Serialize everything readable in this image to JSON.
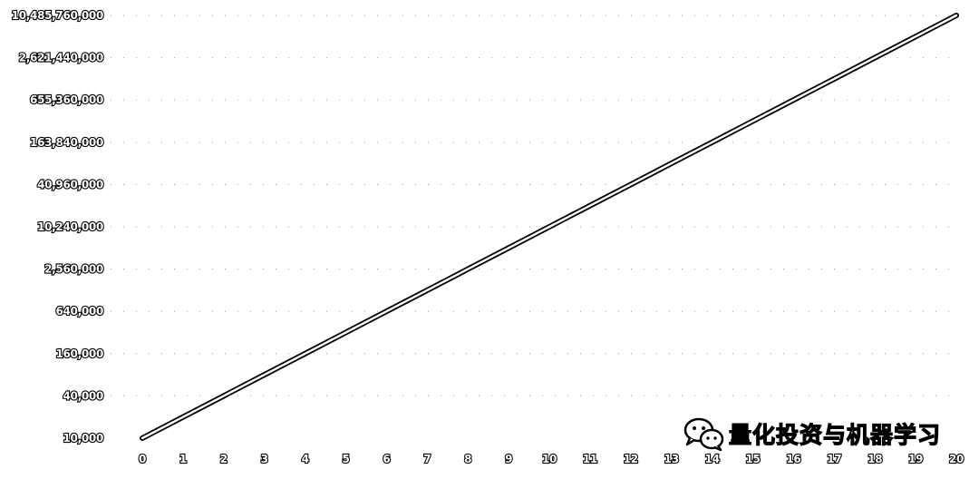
{
  "chart_data": {
    "type": "line",
    "x": [
      0,
      1,
      2,
      3,
      4,
      5,
      6,
      7,
      8,
      9,
      10,
      11,
      12,
      13,
      14,
      15,
      16,
      17,
      18,
      19,
      20
    ],
    "series": [
      {
        "values": [
          10000,
          20000,
          40000,
          80000,
          160000,
          320000,
          640000,
          1280000,
          2560000,
          5120000,
          10240000,
          20480000,
          40960000,
          81920000,
          163840000,
          327680000,
          655360000,
          1310720000,
          2621440000,
          5242880000,
          10485760000
        ]
      }
    ],
    "y_scale": "log",
    "y_ticks": [
      10000,
      40000,
      160000,
      640000,
      2560000,
      10240000,
      40960000,
      163840000,
      655360000,
      2621440000,
      10485760000
    ],
    "y_tick_labels": [
      "10,000",
      "40,000",
      "160,000",
      "640,000",
      "2,560,000",
      "10,240,000",
      "40,960,000",
      "163,840,000",
      "655,360,000",
      "2,621,440,000",
      "10,485,760,000"
    ],
    "x_tick_labels": [
      "0",
      "1",
      "2",
      "3",
      "4",
      "5",
      "6",
      "7",
      "8",
      "9",
      "10",
      "11",
      "12",
      "13",
      "14",
      "15",
      "16",
      "17",
      "18",
      "19",
      "20"
    ],
    "xlim": [
      0,
      20
    ],
    "ylim": [
      10000,
      10485760000
    ],
    "grid": true,
    "title": "",
    "xlabel": "",
    "ylabel": "",
    "colors": {
      "line_outline": "#000000",
      "line_core": "#ffffff",
      "grid": "#9a9a9a"
    }
  },
  "watermark": {
    "icon": "wechat-icon",
    "text": "量化投资与机器学习"
  }
}
